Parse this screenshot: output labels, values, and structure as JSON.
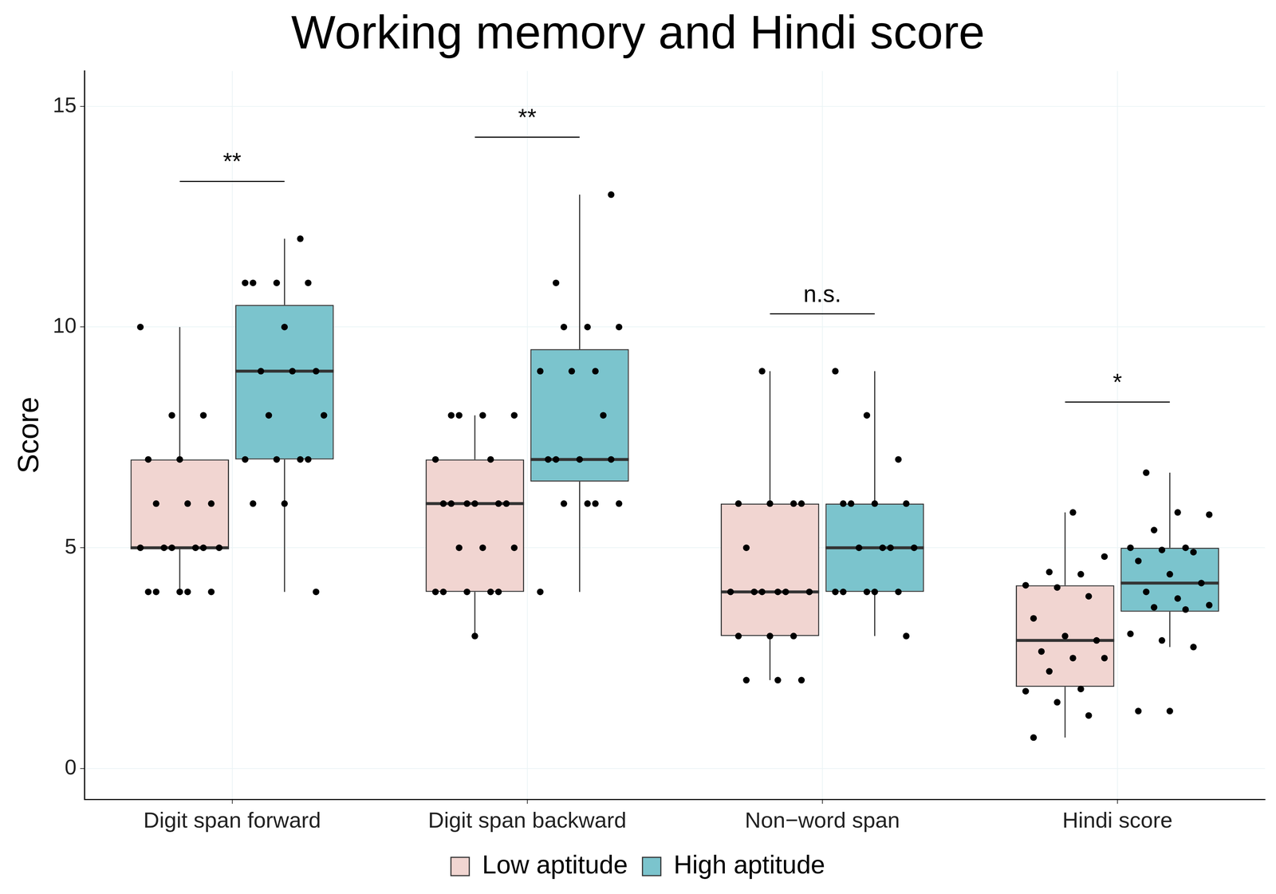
{
  "chart_data": {
    "type": "boxplot",
    "title": "Working memory and Hindi score",
    "y_label": "Score",
    "categories": [
      "Digit span forward",
      "Digit span backward",
      "Non−word span",
      "Hindi score"
    ],
    "ylim": [
      -0.7,
      15.8
    ],
    "yticks": [
      0,
      5,
      10,
      15
    ],
    "grid": true,
    "legend": "bottom",
    "series": [
      {
        "name": "Low aptitude",
        "color": "#f1d5d1",
        "boxes": [
          {
            "whisker_low": 4,
            "q1": 5,
            "median": 5,
            "q3": 7,
            "whisker_high": 10,
            "points": [
              10,
              8,
              8,
              7,
              7,
              6,
              6,
              6,
              5,
              5,
              5,
              5,
              5,
              5,
              4,
              4,
              4,
              4,
              4
            ]
          },
          {
            "whisker_low": 3,
            "q1": 4,
            "median": 6,
            "q3": 7,
            "whisker_high": 8,
            "points": [
              8,
              8,
              8,
              8,
              7,
              7,
              6,
              6,
              6,
              6,
              6,
              6,
              5,
              5,
              5,
              4,
              4,
              4,
              4,
              4,
              3
            ]
          },
          {
            "whisker_low": 2,
            "q1": 3,
            "median": 4,
            "q3": 6,
            "whisker_high": 9,
            "points": [
              9,
              6,
              6,
              6,
              6,
              5,
              4,
              4,
              4,
              4,
              4,
              4,
              3,
              3,
              3,
              2,
              2,
              2
            ]
          },
          {
            "whisker_low": 0.7,
            "q1": 1.85,
            "median": 2.9,
            "q3": 4.15,
            "whisker_high": 5.8,
            "points": [
              5.8,
              4.8,
              4.45,
              4.4,
              4.15,
              4.1,
              3.9,
              3.4,
              3.0,
              2.9,
              2.65,
              2.5,
              2.5,
              2.2,
              1.8,
              1.75,
              1.5,
              1.2,
              0.7
            ]
          }
        ]
      },
      {
        "name": "High aptitude",
        "color": "#7bc4cd",
        "boxes": [
          {
            "whisker_low": 4,
            "q1": 7,
            "median": 9,
            "q3": 10.5,
            "whisker_high": 12,
            "points": [
              12,
              11,
              11,
              11,
              11,
              10,
              9,
              9,
              9,
              8,
              8,
              7,
              7,
              7,
              7,
              6,
              6,
              4
            ]
          },
          {
            "whisker_low": 4,
            "q1": 6.5,
            "median": 7,
            "q3": 9.5,
            "whisker_high": 13,
            "points": [
              13,
              11,
              10,
              10,
              10,
              9,
              9,
              9,
              8,
              7,
              7,
              7,
              7,
              6,
              6,
              6,
              6,
              4
            ]
          },
          {
            "whisker_low": 3,
            "q1": 4,
            "median": 5,
            "q3": 6,
            "whisker_high": 9,
            "points": [
              9,
              8,
              7,
              6,
              6,
              6,
              6,
              5,
              5,
              5,
              5,
              4,
              4,
              4,
              4,
              4,
              3
            ]
          },
          {
            "whisker_low": 2.75,
            "q1": 3.55,
            "median": 4.2,
            "q3": 5.0,
            "whisker_high": 6.7,
            "points": [
              6.7,
              5.8,
              5.75,
              5.4,
              5.0,
              5.0,
              4.95,
              4.9,
              4.7,
              4.4,
              4.2,
              4.0,
              3.85,
              3.7,
              3.65,
              3.6,
              3.05,
              2.9,
              2.75,
              1.3,
              1.3
            ]
          }
        ]
      }
    ],
    "annotations": [
      {
        "category": "Digit span forward",
        "y": 13.3,
        "text": "**"
      },
      {
        "category": "Digit span backward",
        "y": 14.3,
        "text": "**"
      },
      {
        "category": "Non−word span",
        "y": 10.3,
        "text": "n.s."
      },
      {
        "category": "Hindi score",
        "y": 8.3,
        "text": "*"
      }
    ]
  }
}
